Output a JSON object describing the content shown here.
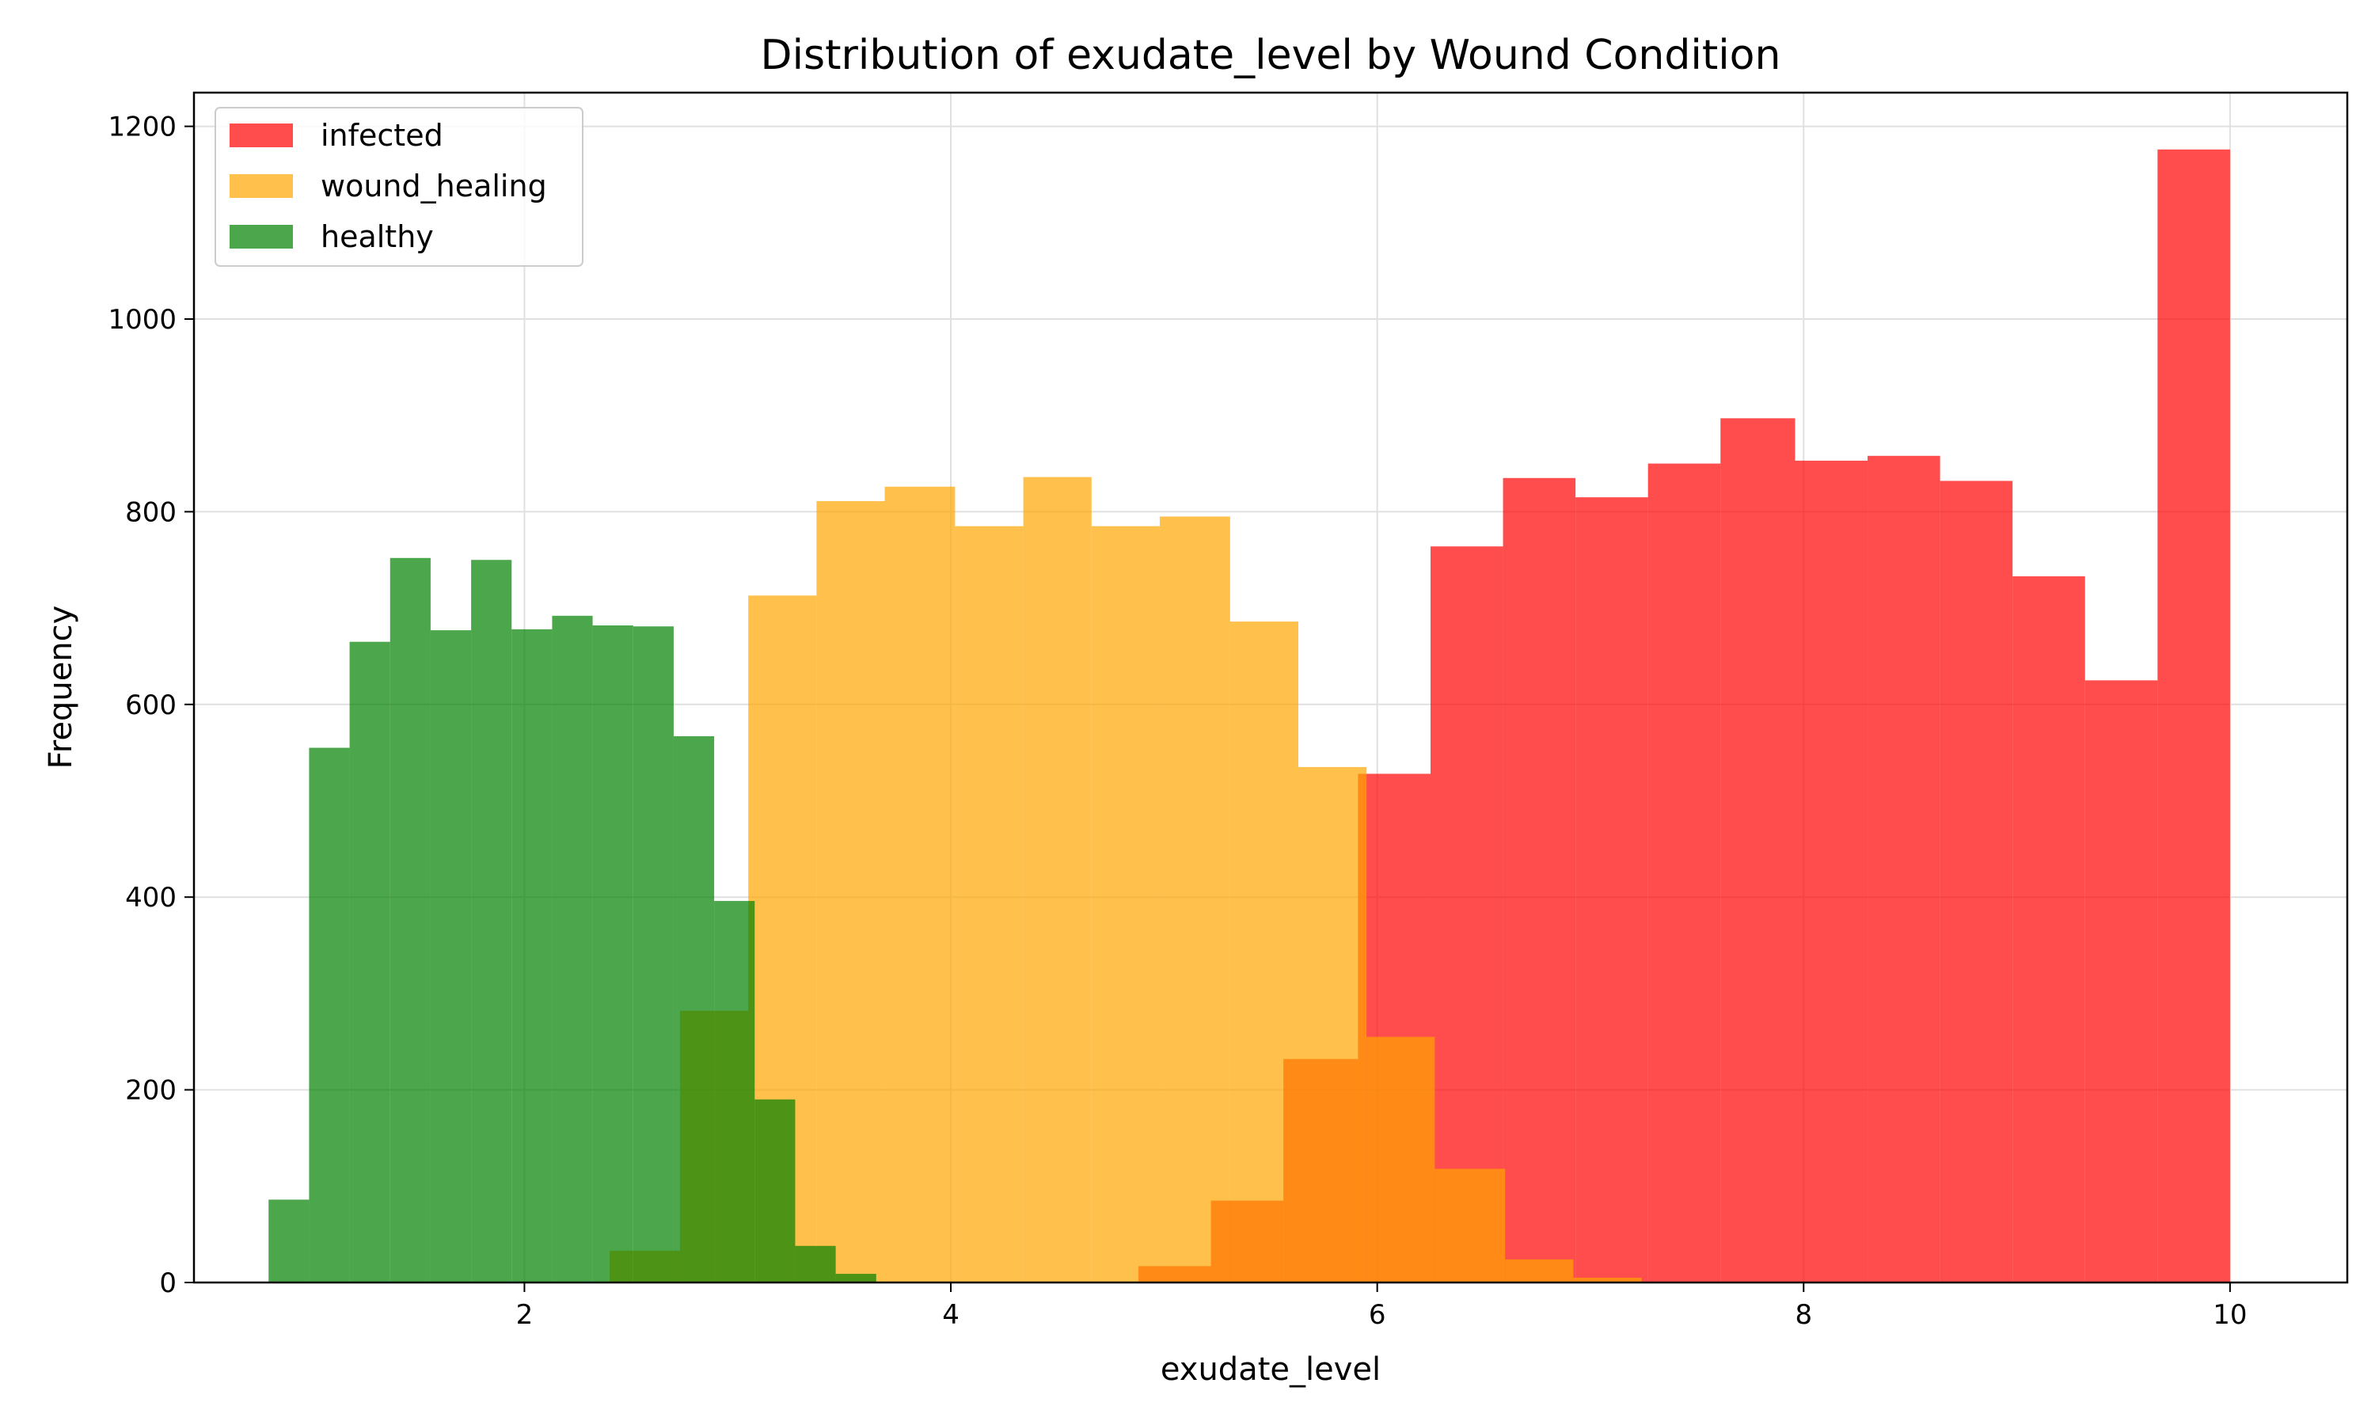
{
  "chart_data": {
    "type": "histogram",
    "title": "Distribution of exudate_level by Wound Condition",
    "xlabel": "exudate_level",
    "ylabel": "Frequency",
    "xlim": [
      0.45,
      10.55
    ],
    "ylim": [
      0,
      1235
    ],
    "xticks": [
      2,
      4,
      6,
      8,
      10
    ],
    "yticks": [
      0,
      200,
      400,
      600,
      800,
      1000,
      1200
    ],
    "grid": true,
    "legend_position": "top-left",
    "series": [
      {
        "name": "infected",
        "color": "#ff0000",
        "opacity": 0.7,
        "bins": [
          [
            4.88,
            5.22,
            17
          ],
          [
            5.22,
            5.56,
            85
          ],
          [
            5.56,
            5.91,
            232
          ],
          [
            5.91,
            6.25,
            528
          ],
          [
            6.25,
            6.59,
            764
          ],
          [
            6.59,
            6.93,
            835
          ],
          [
            6.93,
            7.27,
            815
          ],
          [
            7.27,
            7.61,
            850
          ],
          [
            7.61,
            7.96,
            897
          ],
          [
            7.96,
            8.3,
            853
          ],
          [
            8.3,
            8.64,
            858
          ],
          [
            8.64,
            8.98,
            832
          ],
          [
            8.98,
            9.32,
            733
          ],
          [
            9.32,
            9.66,
            625
          ],
          [
            9.66,
            10.0,
            1176
          ]
        ]
      },
      {
        "name": "wound_healing",
        "color": "#ffa500",
        "opacity": 0.7,
        "bins": [
          [
            2.4,
            2.73,
            33
          ],
          [
            2.73,
            3.05,
            282
          ],
          [
            3.05,
            3.37,
            713
          ],
          [
            3.37,
            3.69,
            811
          ],
          [
            3.69,
            4.02,
            826
          ],
          [
            4.02,
            4.34,
            785
          ],
          [
            4.34,
            4.66,
            836
          ],
          [
            4.66,
            4.98,
            785
          ],
          [
            4.98,
            5.31,
            795
          ],
          [
            5.31,
            5.63,
            686
          ],
          [
            5.63,
            5.95,
            535
          ],
          [
            5.95,
            6.27,
            255
          ],
          [
            6.27,
            6.6,
            118
          ],
          [
            6.6,
            6.92,
            24
          ],
          [
            6.92,
            7.24,
            5
          ]
        ]
      },
      {
        "name": "healthy",
        "color": "#008000",
        "opacity": 0.7,
        "bins": [
          [
            0.8,
            0.99,
            86
          ],
          [
            0.99,
            1.18,
            555
          ],
          [
            1.18,
            1.37,
            665
          ],
          [
            1.37,
            1.56,
            752
          ],
          [
            1.56,
            1.75,
            677
          ],
          [
            1.75,
            1.94,
            750
          ],
          [
            1.94,
            2.13,
            678
          ],
          [
            2.13,
            2.32,
            692
          ],
          [
            2.32,
            2.51,
            682
          ],
          [
            2.51,
            2.7,
            681
          ],
          [
            2.7,
            2.89,
            567
          ],
          [
            2.89,
            3.08,
            396
          ],
          [
            3.08,
            3.27,
            190
          ],
          [
            3.27,
            3.46,
            38
          ],
          [
            3.46,
            3.65,
            9
          ]
        ]
      }
    ]
  }
}
